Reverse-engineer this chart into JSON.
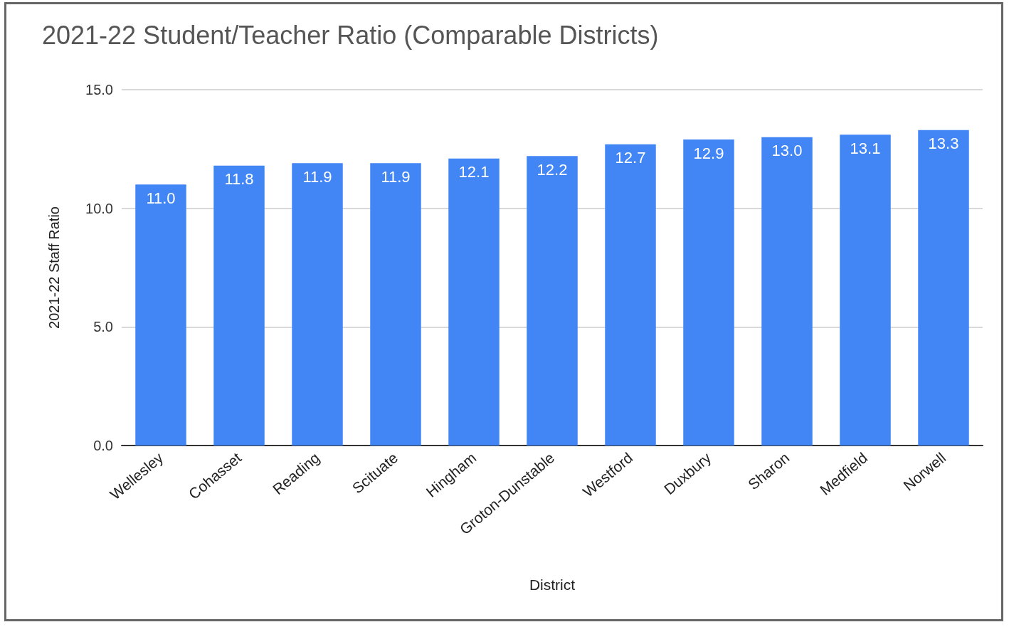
{
  "chart_data": {
    "type": "bar",
    "title": "2021-22 Student/Teacher Ratio (Comparable Districts)",
    "xlabel": "District",
    "ylabel": "2021-22 Staff Ratio",
    "categories": [
      "Wellesley",
      "Cohasset",
      "Reading",
      "Scituate",
      "Hingham",
      "Groton-Dunstable",
      "Westford",
      "Duxbury",
      "Sharon",
      "Medfield",
      "Norwell"
    ],
    "values": [
      11.0,
      11.8,
      11.9,
      11.9,
      12.1,
      12.2,
      12.7,
      12.9,
      13.0,
      13.1,
      13.3
    ],
    "value_labels": [
      "11.0",
      "11.8",
      "11.9",
      "11.9",
      "12.1",
      "12.2",
      "12.7",
      "12.9",
      "13.0",
      "13.1",
      "13.3"
    ],
    "color": "#4285f4",
    "ylim": [
      0,
      15
    ],
    "yticks": [
      {
        "value": 0,
        "label": "0.0"
      },
      {
        "value": 5,
        "label": "5.0"
      },
      {
        "value": 10,
        "label": "10.0"
      },
      {
        "value": 15,
        "label": "15.0"
      }
    ],
    "grid": "y"
  }
}
